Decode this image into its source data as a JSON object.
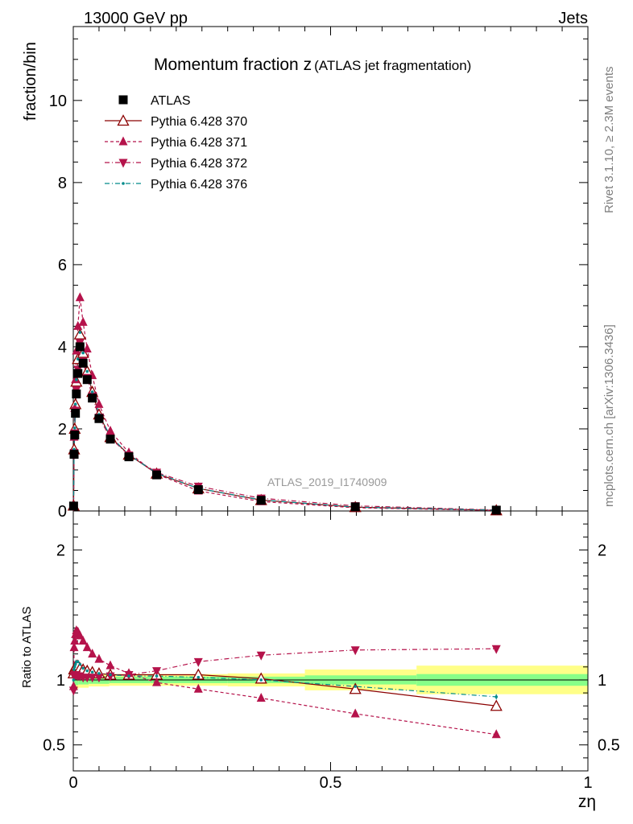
{
  "header": {
    "left": "13000 GeV pp",
    "right": "Jets"
  },
  "side": {
    "rivet": "Rivet 3.1.10, ≥ 2.3M events",
    "site": "mcplots.cern.ch [arXiv:1306.3436]"
  },
  "chart_data": {
    "type": "scatter",
    "title_main": "Momentum fraction z",
    "title_sub": "(ATLAS jet fragmentation)",
    "watermark": "ATLAS_2019_I1740909",
    "xlabel": "zη",
    "ylabel": "fraction/bin",
    "ratio_ylabel": "Ratio to ATLAS",
    "xlim": [
      0,
      1
    ],
    "ylim": [
      0,
      11.8
    ],
    "ratio_ylim": [
      0.3,
      2.3
    ],
    "x_ticks": [
      "0",
      "0.5",
      "1"
    ],
    "y_ticks": [
      "0",
      "2",
      "4",
      "6",
      "8",
      "10"
    ],
    "ratio_ticks": [
      "0.5",
      "1",
      "2"
    ],
    "x": [
      0.0006,
      0.0016,
      0.0028,
      0.0042,
      0.006,
      0.009,
      0.013,
      0.019,
      0.027,
      0.037,
      0.05,
      0.072,
      0.108,
      0.162,
      0.243,
      0.365,
      0.548,
      0.822
    ],
    "band_edges": [
      0,
      0.01,
      0.03,
      0.07,
      0.15,
      0.3,
      0.45,
      0.667,
      1.0
    ],
    "band_inner": [
      0.04,
      0.035,
      0.03,
      0.025,
      0.025,
      0.025,
      0.035,
      0.045
    ],
    "band_outer": [
      0.07,
      0.06,
      0.05,
      0.045,
      0.045,
      0.05,
      0.08,
      0.11
    ],
    "series": [
      {
        "name": "ATLAS",
        "color": "#000000",
        "marker": "square",
        "dash": "none",
        "values": [
          0.12,
          1.38,
          1.85,
          2.38,
          2.85,
          3.35,
          4.0,
          3.6,
          3.2,
          2.75,
          2.25,
          1.75,
          1.32,
          0.88,
          0.52,
          0.26,
          0.1,
          0.02
        ],
        "ratio": [
          1,
          1,
          1,
          1,
          1,
          1,
          1,
          1,
          1,
          1,
          1,
          1,
          1,
          1,
          1,
          1,
          1,
          1
        ]
      },
      {
        "name": "Pythia 6.428 370",
        "color": "#8b0000",
        "marker": "triangle-open",
        "dash": "none",
        "values": [
          0.13,
          1.5,
          2.0,
          2.6,
          3.15,
          3.7,
          4.3,
          3.85,
          3.4,
          2.9,
          2.35,
          1.8,
          1.37,
          0.91,
          0.55,
          0.265,
          0.093,
          0.016
        ],
        "ratio": [
          1.05,
          1.08,
          1.09,
          1.1,
          1.11,
          1.11,
          1.09,
          1.08,
          1.07,
          1.06,
          1.05,
          1.04,
          1.04,
          1.04,
          1.04,
          1.01,
          0.93,
          0.8
        ]
      },
      {
        "name": "Pythia 6.428 371",
        "color": "#b5134b",
        "marker": "triangle-up",
        "dash": "4,3",
        "values": [
          0.13,
          1.8,
          2.5,
          3.2,
          3.9,
          4.5,
          5.2,
          4.6,
          3.95,
          3.3,
          2.6,
          1.95,
          1.42,
          0.9,
          0.49,
          0.23,
          0.078,
          0.012
        ],
        "ratio": [
          0.95,
          1.25,
          1.3,
          1.35,
          1.38,
          1.37,
          1.34,
          1.3,
          1.25,
          1.2,
          1.16,
          1.11,
          1.05,
          0.98,
          0.93,
          0.86,
          0.74,
          0.58
        ]
      },
      {
        "name": "Pythia 6.428 372",
        "color": "#b5134b",
        "marker": "triangle-down",
        "dash": "6,3,1,3",
        "values": [
          0.12,
          1.42,
          1.9,
          2.45,
          2.95,
          3.45,
          4.1,
          3.65,
          3.25,
          2.8,
          2.28,
          1.78,
          1.36,
          0.94,
          0.6,
          0.31,
          0.125,
          0.025
        ],
        "ratio": [
          0.92,
          1.03,
          1.04,
          1.04,
          1.04,
          1.03,
          1.03,
          1.02,
          1.02,
          1.02,
          1.02,
          1.03,
          1.04,
          1.07,
          1.14,
          1.19,
          1.23,
          1.24
        ]
      },
      {
        "name": "Pythia 6.428 376",
        "color": "#008b8b",
        "marker": "dot",
        "dash": "6,3,1,3",
        "values": [
          0.12,
          1.5,
          2.02,
          2.6,
          3.2,
          3.7,
          4.35,
          3.85,
          3.4,
          2.9,
          2.35,
          1.82,
          1.37,
          0.92,
          0.55,
          0.27,
          0.095,
          0.019
        ],
        "ratio": [
          1.0,
          1.08,
          1.1,
          1.12,
          1.14,
          1.14,
          1.12,
          1.09,
          1.07,
          1.06,
          1.05,
          1.04,
          1.03,
          1.03,
          1.02,
          1.0,
          0.95,
          0.87
        ]
      }
    ]
  }
}
